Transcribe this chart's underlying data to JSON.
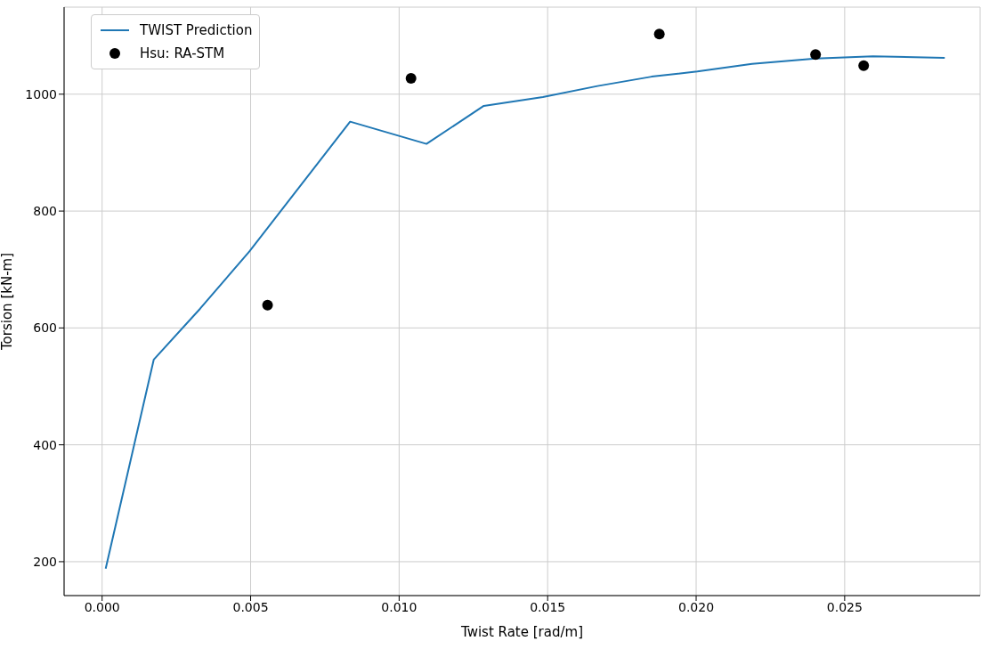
{
  "chart_data": {
    "type": "line",
    "xlabel": "Twist Rate [rad/m]",
    "ylabel": "Torsion [kN-m]",
    "xlim": [
      -0.00128,
      0.02956
    ],
    "ylim": [
      142,
      1149
    ],
    "xticks": [
      {
        "value": 0,
        "label": "0.000"
      },
      {
        "value": 0.005,
        "label": "0.005"
      },
      {
        "value": 0.01,
        "label": "0.010"
      },
      {
        "value": 0.015,
        "label": "0.015"
      },
      {
        "value": 0.02,
        "label": "0.020"
      },
      {
        "value": 0.025,
        "label": "0.025"
      }
    ],
    "yticks": [
      200,
      400,
      600,
      800,
      1000
    ],
    "grid": true,
    "legend": "top left",
    "series": [
      {
        "name": "TWIST Prediction",
        "type": "line",
        "color": "#1f77b4",
        "marker": "none",
        "line_style": "solid",
        "x": [
          0.00012,
          0.00174,
          0.0033,
          0.00496,
          0.00835,
          0.01092,
          0.01285,
          0.01484,
          0.01668,
          0.0185,
          0.02004,
          0.02188,
          0.02402,
          0.02595,
          0.02837
        ],
        "values": [
          188,
          546,
          633,
          731,
          953,
          915,
          980,
          995,
          1014,
          1030,
          1039,
          1052,
          1061,
          1065,
          1062
        ]
      },
      {
        "name": "Hsu: RA-STM",
        "type": "scatter",
        "color": "#000000",
        "marker": "circle",
        "x": [
          0.00557,
          0.0104,
          0.01876,
          0.02402,
          0.02564
        ],
        "values": [
          639,
          1027,
          1103,
          1068,
          1049
        ]
      }
    ]
  }
}
